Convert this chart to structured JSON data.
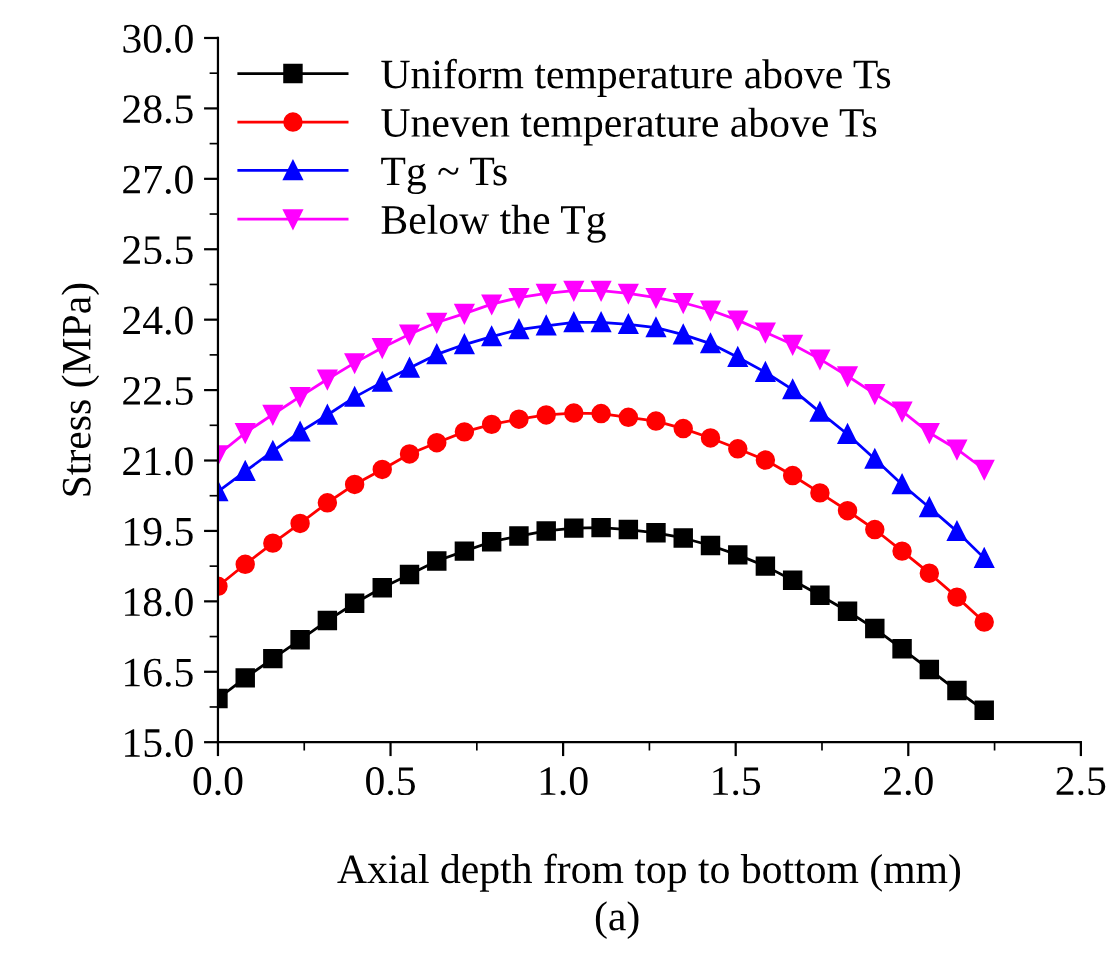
{
  "chart_data": {
    "type": "line",
    "xlabel": "Axial depth from top to bottom (mm)",
    "ylabel": "Stress (MPa)",
    "x": [
      0,
      0.079,
      0.159,
      0.238,
      0.317,
      0.396,
      0.476,
      0.555,
      0.634,
      0.714,
      0.793,
      0.872,
      0.951,
      1.031,
      1.11,
      1.189,
      1.269,
      1.348,
      1.427,
      1.506,
      1.586,
      1.665,
      1.744,
      1.824,
      1.903,
      1.982,
      2.061,
      2.141,
      2.22
    ],
    "series": [
      {
        "name": "Uniform temperature above Ts",
        "color": "#000000",
        "marker": "square",
        "values": [
          15.93,
          16.37,
          16.78,
          17.18,
          17.59,
          17.96,
          18.29,
          18.57,
          18.86,
          19.07,
          19.27,
          19.39,
          19.5,
          19.56,
          19.57,
          19.53,
          19.46,
          19.35,
          19.19,
          18.99,
          18.75,
          18.45,
          18.13,
          17.79,
          17.42,
          16.99,
          16.55,
          16.1,
          15.68
        ]
      },
      {
        "name": "Uneven temperature above Ts",
        "color": "#ff0000",
        "marker": "circle",
        "values": [
          18.32,
          18.79,
          19.24,
          19.66,
          20.1,
          20.49,
          20.81,
          21.14,
          21.38,
          21.61,
          21.77,
          21.88,
          21.97,
          22.01,
          22.0,
          21.92,
          21.84,
          21.68,
          21.48,
          21.25,
          21.01,
          20.68,
          20.31,
          19.93,
          19.53,
          19.07,
          18.6,
          18.09,
          17.56
        ]
      },
      {
        "name": "Tg ~ Ts",
        "color": "#0000ff",
        "marker": "triangle",
        "values": [
          20.34,
          20.77,
          21.2,
          21.61,
          21.97,
          22.35,
          22.67,
          22.97,
          23.26,
          23.47,
          23.64,
          23.79,
          23.87,
          23.94,
          23.94,
          23.9,
          23.83,
          23.68,
          23.49,
          23.2,
          22.88,
          22.51,
          22.03,
          21.56,
          21.03,
          20.49,
          20.0,
          19.49,
          18.92
        ]
      },
      {
        "name": "Below the Tg",
        "color": "#ff00ff",
        "marker": "triangle_down",
        "values": [
          21.12,
          21.59,
          21.98,
          22.36,
          22.73,
          23.08,
          23.4,
          23.69,
          23.94,
          24.13,
          24.33,
          24.47,
          24.56,
          24.62,
          24.62,
          24.56,
          24.47,
          24.36,
          24.2,
          23.99,
          23.73,
          23.47,
          23.16,
          22.8,
          22.42,
          22.05,
          21.59,
          21.24,
          20.81
        ]
      }
    ],
    "xlim": [
      0,
      2.5
    ],
    "xticks": [
      {
        "value": 0,
        "label": "0.0"
      },
      0.5,
      {
        "value": 1,
        "label": "1.0"
      },
      1.5,
      {
        "value": 2,
        "label": "2.0"
      },
      2.5
    ],
    "ylim": [
      15,
      30
    ],
    "yticks": [
      {
        "value": 15,
        "label": "15.0"
      },
      16.5,
      {
        "value": 18,
        "label": "18.0"
      },
      19.5,
      {
        "value": 21,
        "label": "21.0"
      },
      22.5,
      {
        "value": 24,
        "label": "24.0"
      },
      25.5,
      {
        "value": 27,
        "label": "27.0"
      },
      28.5,
      {
        "value": 30,
        "label": "30.0"
      }
    ],
    "legend": "top left",
    "grid": false,
    "annotations": [
      "(a)"
    ]
  }
}
